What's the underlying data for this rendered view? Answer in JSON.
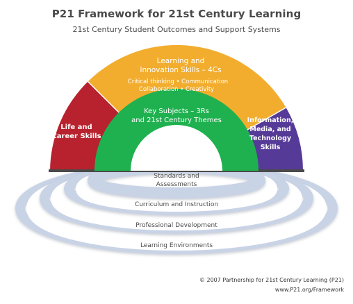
{
  "title": "P21 Framework for 21st Century Learning",
  "subtitle": "21st Century Student Outcomes and Support Systems",
  "arch": {
    "left": {
      "line1": "Life and",
      "line2": "Career Skills",
      "color": "#b7222e"
    },
    "top": {
      "line1": "Learning and",
      "line2": "Innovation Skills – 4Cs",
      "line3": "Critical thinking • Communication",
      "line4": "Collaboration • Creativity",
      "color": "#f2ad2e"
    },
    "right": {
      "line1": "Information,",
      "line2": "Media, and",
      "line3": "Technology",
      "line4": "Skills",
      "color": "#563a97"
    },
    "inner": {
      "line1": "Key Subjects – 3Rs",
      "line2": "and 21st Century Themes",
      "color": "#1fb14f"
    }
  },
  "rings": {
    "color": "#c9d3e6",
    "standards_line1": "Standards and",
    "standards_line2": "Assessments",
    "curriculum": "Curriculum and Instruction",
    "professional": "Professional Development",
    "environments": "Learning Environments"
  },
  "footer": {
    "copyright": "© 2007  Partnership for 21st Century Learning (P21)",
    "url": "www.P21.org/Framework"
  }
}
